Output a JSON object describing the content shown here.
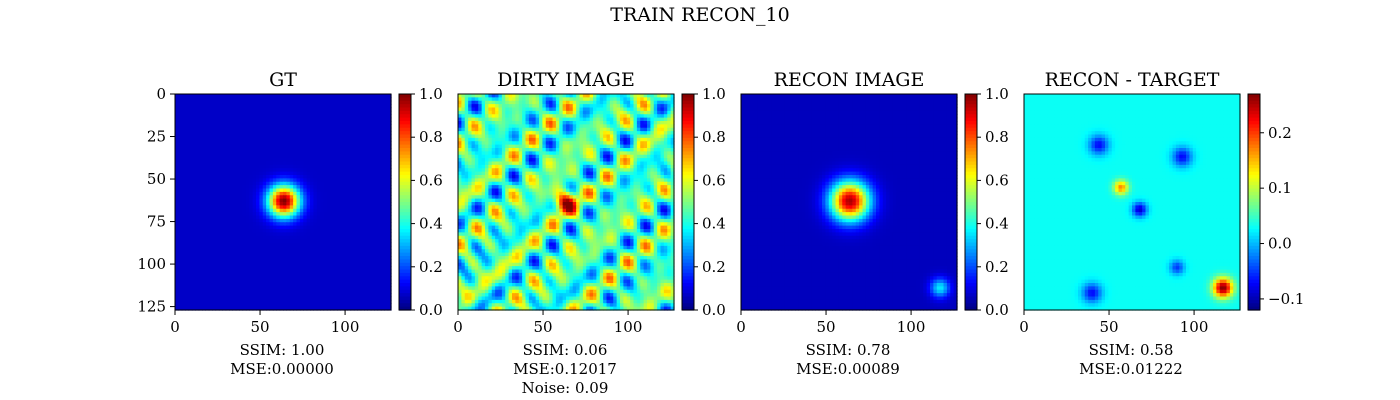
{
  "suptitle": "TRAIN RECON_10",
  "colors": {
    "jet": [
      "#00007f",
      "#0000ff",
      "#007fff",
      "#00ffff",
      "#7fff7f",
      "#ffff00",
      "#ff7f00",
      "#ff0000",
      "#7f0000"
    ]
  },
  "chart_data": [
    {
      "type": "heatmap",
      "title": "GT",
      "xlim": [
        0,
        127
      ],
      "ylim": [
        127,
        0
      ],
      "xticks": [
        0,
        50,
        100
      ],
      "yticks": [
        0,
        25,
        50,
        75,
        100,
        125
      ],
      "colorbar": {
        "range": [
          0.0,
          1.0
        ],
        "ticks": [
          "0.0",
          "0.2",
          "0.4",
          "0.6",
          "0.8",
          "1.0"
        ]
      },
      "field": {
        "base": 0.07,
        "blobs": [
          {
            "cx": 64,
            "cy": 63,
            "s": 6.5,
            "a": 0.93
          }
        ]
      },
      "caption": [
        "SSIM: 1.00",
        "MSE:0.00000"
      ]
    },
    {
      "type": "heatmap",
      "title": "DIRTY IMAGE",
      "xlim": [
        0,
        127
      ],
      "ylim": [
        127,
        0
      ],
      "xticks": [
        0,
        50,
        100
      ],
      "yticks": [],
      "colorbar": {
        "range": [
          0.0,
          1.0
        ],
        "ticks": [
          "0.0",
          "0.2",
          "0.4",
          "0.6",
          "0.8",
          "1.0"
        ]
      },
      "field": {
        "base": 0.45,
        "noise": 0.25,
        "blobs": [
          {
            "cx": 63,
            "cy": 63,
            "s": 5,
            "a": 0.45
          }
        ]
      },
      "caption": [
        "SSIM: 0.06",
        "MSE:0.12017",
        "Noise: 0.09"
      ]
    },
    {
      "type": "heatmap",
      "title": "RECON IMAGE",
      "xlim": [
        0,
        127
      ],
      "ylim": [
        127,
        0
      ],
      "xticks": [
        0,
        50,
        100
      ],
      "yticks": [],
      "colorbar": {
        "range": [
          0.0,
          1.0
        ],
        "ticks": [
          "0.0",
          "0.2",
          "0.4",
          "0.6",
          "0.8",
          "1.0"
        ]
      },
      "field": {
        "base": 0.06,
        "blobs": [
          {
            "cx": 64,
            "cy": 63,
            "s": 8,
            "a": 0.9
          },
          {
            "cx": 117,
            "cy": 114,
            "s": 4,
            "a": 0.3
          }
        ]
      },
      "caption": [
        "SSIM: 0.78",
        "MSE:0.00089"
      ]
    },
    {
      "type": "heatmap",
      "title": "RECON - TARGET",
      "xlim": [
        0,
        127
      ],
      "ylim": [
        127,
        0
      ],
      "xticks": [
        0,
        50,
        100
      ],
      "yticks": [],
      "colorbar": {
        "range": [
          -0.12,
          0.27
        ],
        "ticks": [
          "−0.1",
          "0.0",
          "0.1",
          "0.2"
        ],
        "tick_values": [
          -0.1,
          0.0,
          0.1,
          0.2
        ]
      },
      "field": {
        "base": 0.03,
        "blobs": [
          {
            "cx": 117,
            "cy": 114,
            "s": 4,
            "a": 0.24
          },
          {
            "cx": 57,
            "cy": 55,
            "s": 3,
            "a": 0.14
          },
          {
            "cx": 68,
            "cy": 68,
            "s": 3,
            "a": -0.12
          },
          {
            "cx": 44,
            "cy": 30,
            "s": 4,
            "a": -0.1
          },
          {
            "cx": 93,
            "cy": 37,
            "s": 4,
            "a": -0.1
          },
          {
            "cx": 40,
            "cy": 117,
            "s": 4,
            "a": -0.1
          },
          {
            "cx": 90,
            "cy": 102,
            "s": 3,
            "a": -0.08
          }
        ]
      },
      "caption": [
        "SSIM: 0.58",
        "MSE:0.01222"
      ]
    }
  ]
}
